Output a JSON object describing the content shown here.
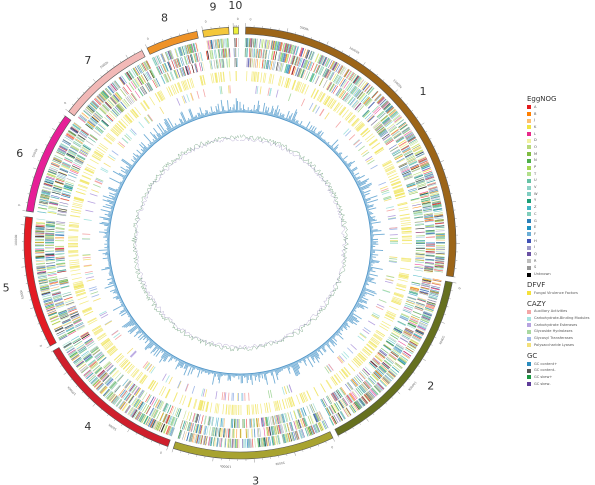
{
  "chromosomes": [
    {
      "label": "1",
      "start": 1.5,
      "end": 99.0,
      "color": "#9c6518",
      "ticks": [
        "0",
        "5000k",
        "10000k",
        "15000k"
      ]
    },
    {
      "label": "2",
      "start": 100.5,
      "end": 153.0,
      "color": "#66701f",
      "ticks": [
        "0",
        "5000k",
        "10000k"
      ]
    },
    {
      "label": "3",
      "start": 154.5,
      "end": 198.0,
      "color": "#a8a330",
      "ticks": [
        "0",
        "5000k",
        "10000k"
      ]
    },
    {
      "label": "4",
      "start": 199.5,
      "end": 240.0,
      "color": "#cf1f2c",
      "ticks": [
        "0",
        "5000k",
        "10000k"
      ]
    },
    {
      "label": "5",
      "start": 241.5,
      "end": 277.0,
      "color": "#e31b23",
      "ticks": [
        "0",
        "5000k",
        "10000k"
      ]
    },
    {
      "label": "6",
      "start": 278.5,
      "end": 306.0,
      "color": "#e61f97",
      "ticks": [
        "0",
        "5000k"
      ]
    },
    {
      "label": "7",
      "start": 307.5,
      "end": 333.0,
      "color": "#f2b9b7",
      "ticks": [
        "0",
        "5000k"
      ]
    },
    {
      "label": "8",
      "start": 334.5,
      "end": 348.5,
      "color": "#ee9227",
      "ticks": [
        "0"
      ]
    },
    {
      "label": "9",
      "start": 350.0,
      "end": 357.0,
      "color": "#f4c73a",
      "ticks": [
        "0"
      ]
    },
    {
      "label": "10",
      "start": 358.2,
      "end": 359.6,
      "color": "#ecef3b",
      "ticks": [
        "0"
      ]
    }
  ],
  "legend": {
    "eggnog": {
      "title": "EggNOG",
      "items": [
        {
          "label": "A",
          "color": "#e41a1c"
        },
        {
          "label": "B",
          "color": "#ff7f00"
        },
        {
          "label": "J",
          "color": "#fdbf6f"
        },
        {
          "label": "K",
          "color": "#f0e442"
        },
        {
          "label": "L",
          "color": "#e7298a"
        },
        {
          "label": "D",
          "color": "#f2f2a0"
        },
        {
          "label": "O",
          "color": "#b8d87a"
        },
        {
          "label": "M",
          "color": "#7fbc41"
        },
        {
          "label": "N",
          "color": "#4daf4a"
        },
        {
          "label": "P",
          "color": "#a6d854"
        },
        {
          "label": "T",
          "color": "#b2df8a"
        },
        {
          "label": "U",
          "color": "#66c2a5"
        },
        {
          "label": "V",
          "color": "#8dd3c7"
        },
        {
          "label": "W",
          "color": "#80cdc1"
        },
        {
          "label": "Y",
          "color": "#1b9e77"
        },
        {
          "label": "Z",
          "color": "#41b6c4"
        },
        {
          "label": "C",
          "color": "#7fcdbb"
        },
        {
          "label": "G",
          "color": "#2c7fb8"
        },
        {
          "label": "E",
          "color": "#1d91c0"
        },
        {
          "label": "F",
          "color": "#6baed6"
        },
        {
          "label": "H",
          "color": "#3f51b5"
        },
        {
          "label": "I",
          "color": "#9e9ac8"
        },
        {
          "label": "Q",
          "color": "#6a51a3"
        },
        {
          "label": "R",
          "color": "#bdbdbd"
        },
        {
          "label": "S",
          "color": "#969696"
        },
        {
          "label": "Unknown",
          "color": "#000000"
        }
      ]
    },
    "dfvf": {
      "title": "DFVF",
      "items": [
        {
          "label": "Fungal Virulence Factors",
          "color": "#f5e13c"
        }
      ]
    },
    "cazy": {
      "title": "CAZY",
      "items": [
        {
          "label": "Auxiliary Activities",
          "color": "#f4a6a6"
        },
        {
          "label": "Carbohydrate-Binding Modules",
          "color": "#a6e3e0"
        },
        {
          "label": "Carbohydrate Esterases",
          "color": "#b7a3e0"
        },
        {
          "label": "Glycoside Hydrolases",
          "color": "#a8d8a0"
        },
        {
          "label": "Glycosyl Transferases",
          "color": "#a0b8e8"
        },
        {
          "label": "Polysaccharide Lyases",
          "color": "#f3e07a"
        }
      ]
    },
    "gc": {
      "title": "GC",
      "items": [
        {
          "label": "GC content+",
          "color": "#2b8cbe"
        },
        {
          "label": "GC content-",
          "color": "#555555"
        },
        {
          "label": "GC skew+",
          "color": "#1a9641"
        },
        {
          "label": "GC skew-",
          "color": "#5e3c99"
        }
      ]
    }
  }
}
